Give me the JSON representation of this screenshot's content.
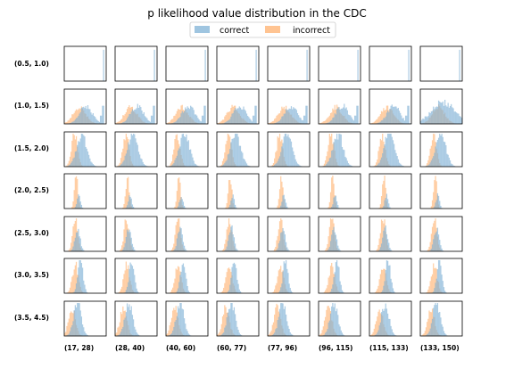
{
  "chart_data": {
    "type": "histogram-grid",
    "title": "p likelihood value distribution in the CDC",
    "legend": {
      "placement": "top-center",
      "entries": [
        {
          "name": "correct",
          "color": "#7fb1d6"
        },
        {
          "name": "incorrect",
          "color": "#ffbe86"
        }
      ]
    },
    "row_labels": [
      "(0.5, 1.0)",
      "(1.0, 1.5)",
      "(1.5, 2.0)",
      "(2.0, 2.5)",
      "(2.5, 3.0)",
      "(3.0, 3.5)",
      "(3.5, 4.5)"
    ],
    "col_labels": [
      "(17, 28)",
      "(28, 40)",
      "(40, 60)",
      "(60, 77)",
      "(77, 96)",
      "(96, 115)",
      "(115, 133)",
      "(133, 150)"
    ],
    "bins": 40,
    "series_colors": {
      "correct": "#7fb1d6",
      "incorrect": "#ffbe86"
    },
    "rows": [
      {
        "correct": {
          "type": "spike",
          "pos": 0.94
        },
        "incorrect": null
      },
      {
        "correct": {
          "type": "mix",
          "center": 0.55,
          "width": 0.15,
          "spike": 0.92
        },
        "incorrect": {
          "center": 0.4,
          "width": 0.15,
          "scale": 0.5
        }
      },
      {
        "correct": {
          "center": 0.45,
          "width": 0.12
        },
        "incorrect": {
          "center": 0.28,
          "width": 0.07,
          "scale": 1.0
        }
      },
      {
        "correct": {
          "center": 0.38,
          "width": 0.04,
          "scale": 0.4
        },
        "incorrect": {
          "center": 0.32,
          "width": 0.04,
          "scale": 1.0
        }
      },
      {
        "correct": {
          "center": 0.35,
          "width": 0.06,
          "scale": 0.7
        },
        "incorrect": {
          "center": 0.3,
          "width": 0.06,
          "scale": 1.0
        }
      },
      {
        "correct": {
          "center": 0.42,
          "width": 0.06,
          "scale": 1.0
        },
        "incorrect": {
          "center": 0.3,
          "width": 0.07,
          "scale": 0.85
        }
      },
      {
        "correct": {
          "center": 0.35,
          "width": 0.09,
          "scale": 1.0
        },
        "incorrect": {
          "center": 0.22,
          "width": 0.08,
          "scale": 0.85
        }
      }
    ]
  }
}
